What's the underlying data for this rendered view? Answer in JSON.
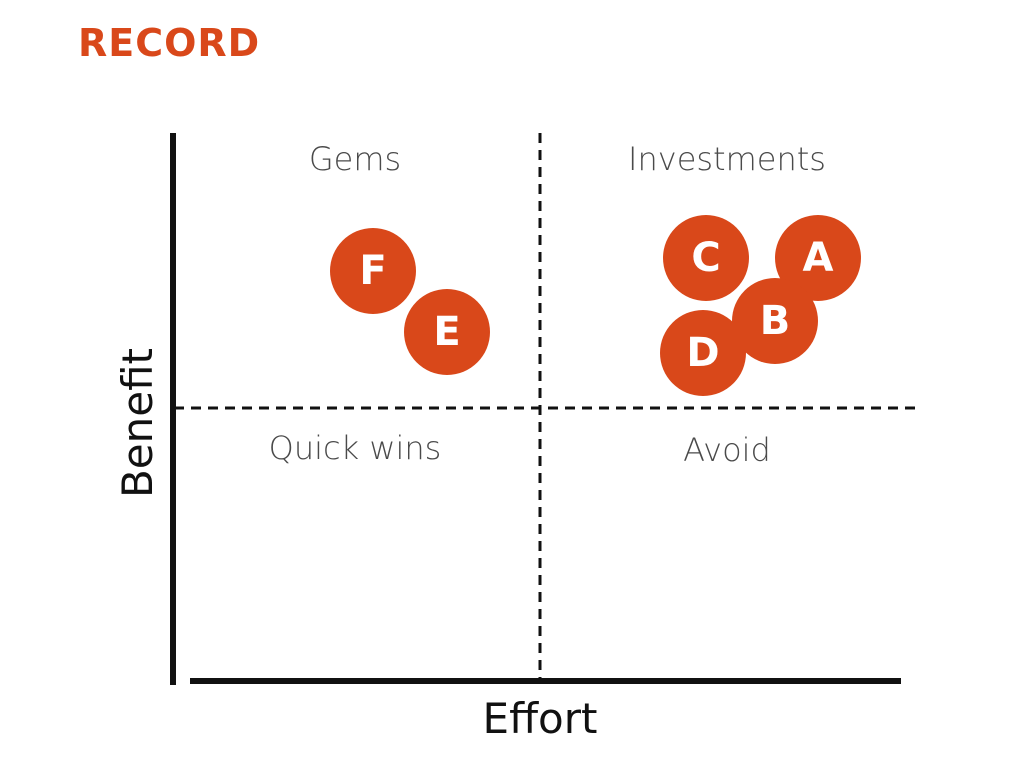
{
  "title": "RECORD",
  "colors": {
    "accent": "#D9481A",
    "axis": "#111111",
    "quadrant_text": "#4a4a4a"
  },
  "axes": {
    "x_label": "Effort",
    "y_label": "Benefit"
  },
  "quadrants": {
    "top_left": "Gems",
    "top_right": "Investments",
    "bottom_left": "Quick wins",
    "bottom_right": "Avoid"
  },
  "items": [
    {
      "label": "F"
    },
    {
      "label": "E"
    },
    {
      "label": "C"
    },
    {
      "label": "A"
    },
    {
      "label": "B"
    },
    {
      "label": "D"
    }
  ]
}
